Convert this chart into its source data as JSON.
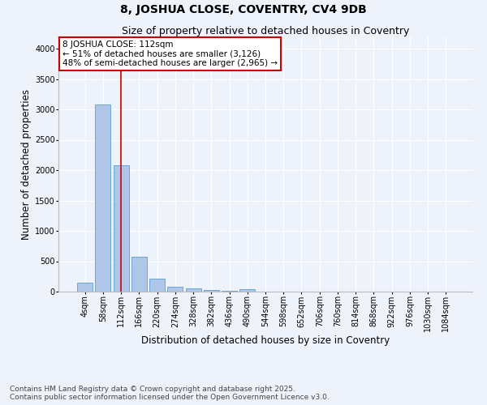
{
  "title": "8, JOSHUA CLOSE, COVENTRY, CV4 9DB",
  "subtitle": "Size of property relative to detached houses in Coventry",
  "xlabel": "Distribution of detached houses by size in Coventry",
  "ylabel": "Number of detached properties",
  "categories": [
    "4sqm",
    "58sqm",
    "112sqm",
    "166sqm",
    "220sqm",
    "274sqm",
    "328sqm",
    "382sqm",
    "436sqm",
    "490sqm",
    "544sqm",
    "598sqm",
    "652sqm",
    "706sqm",
    "760sqm",
    "814sqm",
    "868sqm",
    "922sqm",
    "976sqm",
    "1030sqm",
    "1084sqm"
  ],
  "values": [
    150,
    3080,
    2080,
    580,
    220,
    80,
    55,
    30,
    15,
    40,
    0,
    0,
    0,
    0,
    0,
    0,
    0,
    0,
    0,
    0,
    0
  ],
  "bar_color": "#aec6e8",
  "bar_edge_color": "#5a9fd4",
  "red_line_index": 2,
  "annotation_text": "8 JOSHUA CLOSE: 112sqm\n← 51% of detached houses are smaller (3,126)\n48% of semi-detached houses are larger (2,965) →",
  "annotation_box_color": "#ffffff",
  "annotation_box_edge_color": "#cc0000",
  "ylim": [
    0,
    4200
  ],
  "yticks": [
    0,
    500,
    1000,
    1500,
    2000,
    2500,
    3000,
    3500,
    4000
  ],
  "background_color": "#eef2fb",
  "grid_color": "#ffffff",
  "footer_line1": "Contains HM Land Registry data © Crown copyright and database right 2025.",
  "footer_line2": "Contains public sector information licensed under the Open Government Licence v3.0.",
  "title_fontsize": 10,
  "subtitle_fontsize": 9,
  "axis_label_fontsize": 8.5,
  "tick_fontsize": 7,
  "annotation_fontsize": 7.5,
  "footer_fontsize": 6.5
}
